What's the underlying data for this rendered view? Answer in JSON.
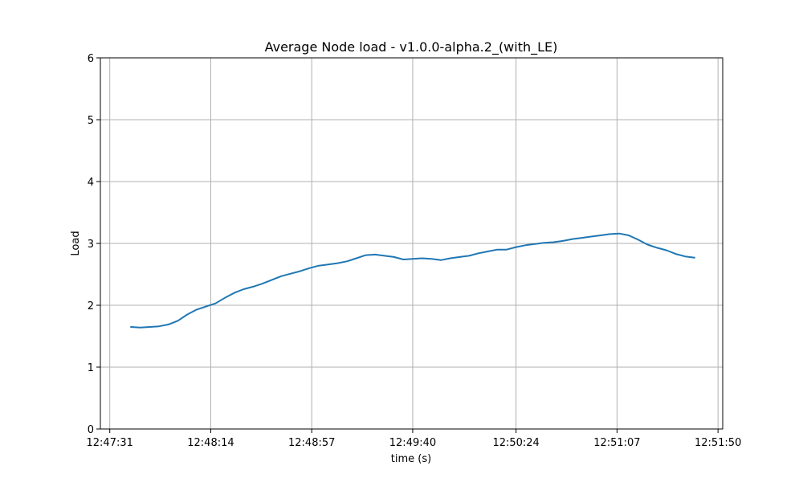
{
  "chart_data": {
    "type": "line",
    "title": "Average Node load  -  v1.0.0-alpha.2_(with_LE)",
    "xlabel": "time (s)",
    "ylabel": "Load",
    "xlim": [
      "12:47:27",
      "12:51:52"
    ],
    "ylim": [
      0,
      6
    ],
    "grid": true,
    "x_ticks": [
      "12:47:31",
      "12:48:14",
      "12:48:57",
      "12:49:40",
      "12:50:24",
      "12:51:07",
      "12:51:50"
    ],
    "y_ticks": [
      "0",
      "1",
      "2",
      "3",
      "4",
      "5",
      "6"
    ],
    "color": "#1f77b4",
    "x": [
      "12:47:40",
      "12:47:44",
      "12:47:48",
      "12:47:52",
      "12:47:56",
      "12:48:00",
      "12:48:04",
      "12:48:08",
      "12:48:12",
      "12:48:16",
      "12:48:20",
      "12:48:24",
      "12:48:28",
      "12:48:32",
      "12:48:36",
      "12:48:40",
      "12:48:44",
      "12:48:48",
      "12:48:52",
      "12:48:56",
      "12:49:00",
      "12:49:04",
      "12:49:08",
      "12:49:12",
      "12:49:16",
      "12:49:20",
      "12:49:24",
      "12:49:28",
      "12:49:32",
      "12:49:36",
      "12:49:40",
      "12:49:44",
      "12:49:48",
      "12:49:52",
      "12:49:56",
      "12:50:00",
      "12:50:04",
      "12:50:08",
      "12:50:12",
      "12:50:16",
      "12:50:20",
      "12:50:24",
      "12:50:28",
      "12:50:32",
      "12:50:36",
      "12:50:40",
      "12:50:44",
      "12:50:48",
      "12:50:52",
      "12:50:56",
      "12:51:00",
      "12:51:04",
      "12:51:08",
      "12:51:12",
      "12:51:16",
      "12:51:20",
      "12:51:24",
      "12:51:28",
      "12:51:32",
      "12:51:36",
      "12:51:40"
    ],
    "y": [
      1.65,
      1.64,
      1.65,
      1.66,
      1.69,
      1.75,
      1.85,
      1.93,
      1.98,
      2.03,
      2.12,
      2.2,
      2.26,
      2.3,
      2.35,
      2.41,
      2.47,
      2.51,
      2.55,
      2.6,
      2.64,
      2.66,
      2.68,
      2.71,
      2.76,
      2.81,
      2.82,
      2.8,
      2.78,
      2.74,
      2.75,
      2.76,
      2.75,
      2.73,
      2.76,
      2.78,
      2.8,
      2.84,
      2.87,
      2.9,
      2.9,
      2.94,
      2.97,
      2.99,
      3.01,
      3.02,
      3.04,
      3.07,
      3.09,
      3.11,
      3.13,
      3.15,
      3.16,
      3.13,
      3.06,
      2.98,
      2.93,
      2.89,
      2.83,
      2.79,
      2.77
    ]
  }
}
